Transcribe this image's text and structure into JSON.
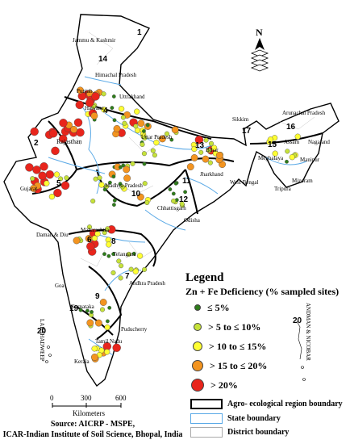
{
  "legend": {
    "title": "Legend",
    "subtitle": "Zn + Fe  Deficiency (% sampled sites)",
    "classes": [
      {
        "label": "≤ 5%",
        "color": "#2e7d1a"
      },
      {
        "label": "> 5 to ≤ 10%",
        "color": "#c6e23a"
      },
      {
        "label": "> 10 to ≤ 15%",
        "color": "#ffff33"
      },
      {
        "label": "> 15 to ≤ 20%",
        "color": "#f39420"
      },
      {
        "label": "> 20%",
        "color": "#e8251c"
      }
    ],
    "lines": [
      {
        "label": "Agro- ecological region boundary",
        "color": "#000000"
      },
      {
        "label": "State boundary",
        "color": "#5aa9e6"
      },
      {
        "label": "District boundary",
        "color": "#aaaaaa"
      }
    ]
  },
  "scale": {
    "ticks": [
      "0",
      "300",
      "600"
    ],
    "unit": "Kilometers"
  },
  "north_label": "N",
  "source": {
    "line1": "Source: AICRP - MSPE,",
    "line2": "ICAR-Indian Institute of Soil Science, Bhopal, India"
  },
  "states": {
    "jk": "Jammu & Kashmir",
    "hp": "Himachal Pradesh",
    "uk": "Uttrakhand",
    "pb": "Punjab",
    "hr": "Haryana",
    "rj": "Rajasthan",
    "up": "Uttar Pradesh",
    "bh": "Bihar",
    "jh": "Jharkhand",
    "wb": "West Bengal",
    "sk": "Sikkim",
    "ar": "Arunachal Pradesh",
    "as": "Assam",
    "nl": "Nagaland",
    "mg": "Meghalaya",
    "mn": "Manipur",
    "mz": "Mizoram",
    "tr": "Tripura",
    "gj": "Gujarat",
    "mp": "Madhya Pradesh",
    "cg": "Chhattisgarh",
    "od": "Odisha",
    "dd": "Daman & Diu",
    "mh": "Maharashtra",
    "tg": "Telangana",
    "ap": "Andhra Pradesh",
    "goa": "Goa",
    "ka": "Karnataka",
    "tn": "Tamil Nadu",
    "kl": "Kerala",
    "py": "Puducherry",
    "ld": "LAKSHADWEEP",
    "an": "ANDMAN & NICOBAR"
  },
  "regions": [
    "1",
    "2",
    "4",
    "5",
    "6",
    "7",
    "8",
    "9",
    "10",
    "11",
    "12",
    "13",
    "14",
    "15",
    "16",
    "17",
    "19",
    "20",
    "20"
  ]
}
